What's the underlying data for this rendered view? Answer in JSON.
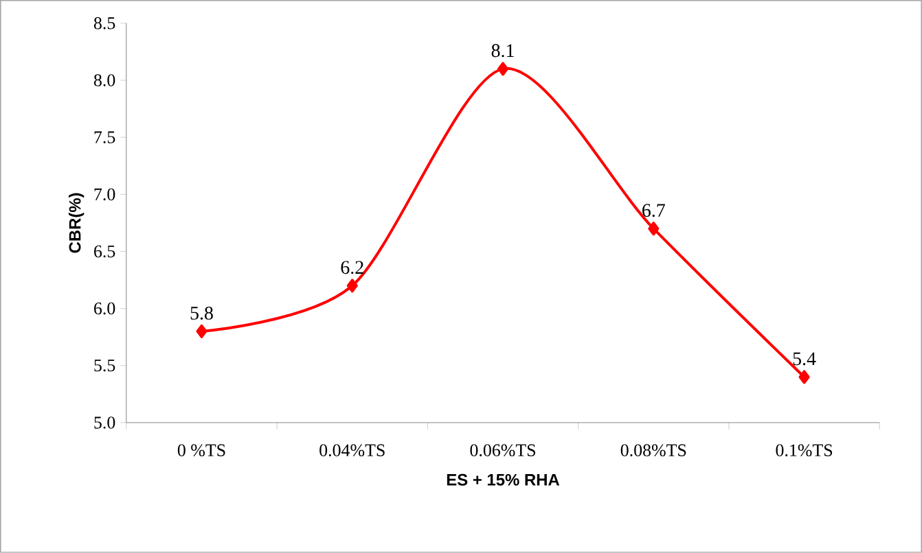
{
  "chart_data": {
    "type": "line",
    "xlabel": "ES + 15% RHA",
    "ylabel": "CBR(%)",
    "categories": [
      "0 %TS",
      "0.04%TS",
      "0.06%TS",
      "0.08%TS",
      "0.1%TS"
    ],
    "values": [
      5.8,
      6.2,
      8.1,
      6.7,
      5.4
    ],
    "color": "#ff0000",
    "marker": "diamond",
    "line_style": "solid",
    "data_labels": true,
    "ylim": [
      5,
      8.5
    ],
    "yticks": [
      {
        "value": 5,
        "label": "5.0"
      },
      {
        "value": 5.5,
        "label": "5.5"
      },
      {
        "value": 6,
        "label": "6.0"
      },
      {
        "value": 6.5,
        "label": "6.5"
      },
      {
        "value": 7,
        "label": "7.0"
      },
      {
        "value": 7.5,
        "label": "7.5"
      },
      {
        "value": 8,
        "label": "8.0"
      },
      {
        "value": 8.5,
        "label": "8.5"
      }
    ]
  }
}
